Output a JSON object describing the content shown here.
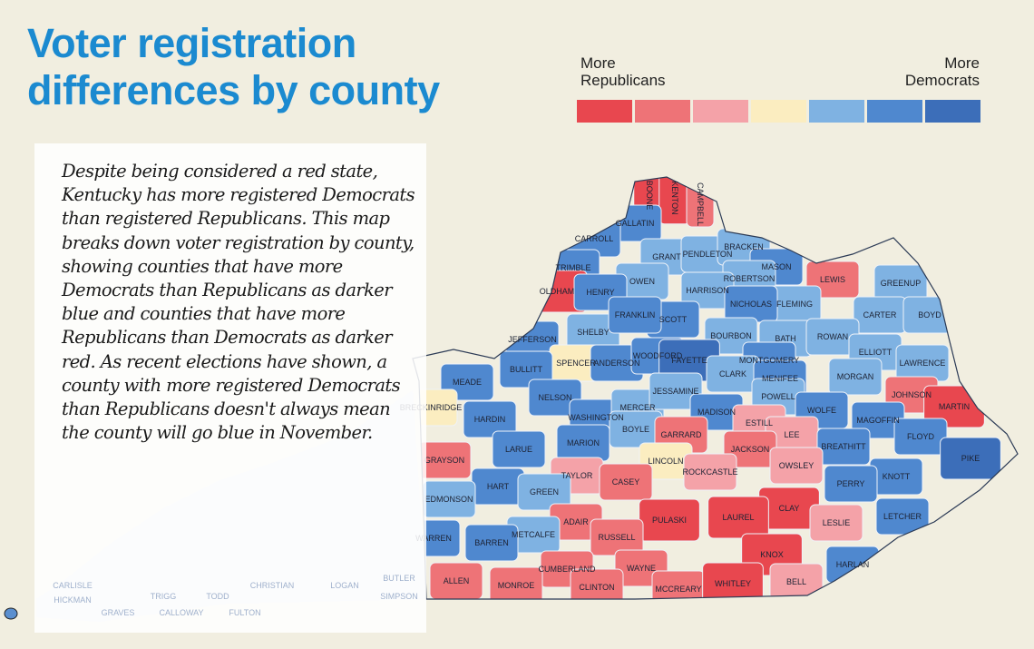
{
  "title_line1": "Voter registration",
  "title_line2": "differences by county",
  "legend": {
    "left_label": "More Republicans",
    "right_label": "More Democrats",
    "colors": [
      "#e8474f",
      "#ee7377",
      "#f4a2a8",
      "#fbedc0",
      "#7fb2e2",
      "#4f88cf",
      "#3c6eb9"
    ]
  },
  "body_text": "Despite being considered a red state, Kentucky has more registered Democrats than registered Republicans. This map breaks down voter registration by county, showing counties that have more Democrats than Republicans as darker blue and counties that have more Republicans than Democrats as darker red. As recent elections have shown, a county with more registered Democrats than Republicans doesn't always mean the county will go blue in November.",
  "counties": [
    {
      "name": "BOONE",
      "level": -3
    },
    {
      "name": "KENTON",
      "level": -3
    },
    {
      "name": "CAMPBELL",
      "level": -2
    },
    {
      "name": "GALLATIN",
      "level": 2
    },
    {
      "name": "CARROLL",
      "level": 2
    },
    {
      "name": "TRIMBLE",
      "level": 2
    },
    {
      "name": "OLDHAM",
      "level": -3
    },
    {
      "name": "GRANT",
      "level": 1
    },
    {
      "name": "PENDLETON",
      "level": 1
    },
    {
      "name": "BRACKEN",
      "level": 1
    },
    {
      "name": "OWEN",
      "level": 1
    },
    {
      "name": "HENRY",
      "level": 2
    },
    {
      "name": "MASON",
      "level": 2
    },
    {
      "name": "ROBERTSON",
      "level": 1
    },
    {
      "name": "LEWIS",
      "level": -2
    },
    {
      "name": "GREENUP",
      "level": 1
    },
    {
      "name": "HARRISON",
      "level": 1
    },
    {
      "name": "FLEMING",
      "level": 1
    },
    {
      "name": "CARTER",
      "level": 1
    },
    {
      "name": "BOYD",
      "level": 1
    },
    {
      "name": "SHELBY",
      "level": 1
    },
    {
      "name": "SCOTT",
      "level": 2
    },
    {
      "name": "FRANKLIN",
      "level": 2
    },
    {
      "name": "NICHOLAS",
      "level": 2
    },
    {
      "name": "BOURBON",
      "level": 1
    },
    {
      "name": "BATH",
      "level": 1
    },
    {
      "name": "ROWAN",
      "level": 1
    },
    {
      "name": "ELLIOTT",
      "level": 1
    },
    {
      "name": "LAWRENCE",
      "level": 1
    },
    {
      "name": "JEFFERSON",
      "level": 2
    },
    {
      "name": "SPENCER",
      "level": 0
    },
    {
      "name": "ANDERSON",
      "level": 2
    },
    {
      "name": "WOODFORD",
      "level": 2
    },
    {
      "name": "FAYETTE",
      "level": 3
    },
    {
      "name": "MONTGOMERY",
      "level": 2
    },
    {
      "name": "CLARK",
      "level": 1
    },
    {
      "name": "MENIFEE",
      "level": 2
    },
    {
      "name": "MORGAN",
      "level": 1
    },
    {
      "name": "JOHNSON",
      "level": -2
    },
    {
      "name": "MARTIN",
      "level": -3
    },
    {
      "name": "BULLITT",
      "level": 2
    },
    {
      "name": "MEADE",
      "level": 2
    },
    {
      "name": "BRECKINRIDGE",
      "level": 0
    },
    {
      "name": "HARDIN",
      "level": 2
    },
    {
      "name": "NELSON",
      "level": 2
    },
    {
      "name": "WASHINGTON",
      "level": 2
    },
    {
      "name": "MERCER",
      "level": 1
    },
    {
      "name": "JESSAMINE",
      "level": 1
    },
    {
      "name": "MADISON",
      "level": 2
    },
    {
      "name": "POWELL",
      "level": 1
    },
    {
      "name": "ESTILL",
      "level": -1
    },
    {
      "name": "WOLFE",
      "level": 2
    },
    {
      "name": "MAGOFFIN",
      "level": 2
    },
    {
      "name": "FLOYD",
      "level": 2
    },
    {
      "name": "PIKE",
      "level": 3
    },
    {
      "name": "BOYLE",
      "level": 1
    },
    {
      "name": "MARION",
      "level": 2
    },
    {
      "name": "GARRARD",
      "level": -2
    },
    {
      "name": "LEE",
      "level": -1
    },
    {
      "name": "BREATHITT",
      "level": 2
    },
    {
      "name": "LARUE",
      "level": 2
    },
    {
      "name": "LINCOLN",
      "level": 0
    },
    {
      "name": "GRAYSON",
      "level": -2
    },
    {
      "name": "JACKSON",
      "level": -2
    },
    {
      "name": "OWSLEY",
      "level": -1
    },
    {
      "name": "KNOTT",
      "level": 2
    },
    {
      "name": "HART",
      "level": 2
    },
    {
      "name": "TAYLOR",
      "level": -1
    },
    {
      "name": "CASEY",
      "level": -2
    },
    {
      "name": "ROCKCASTLE",
      "level": -1
    },
    {
      "name": "PERRY",
      "level": 2
    },
    {
      "name": "EDMONSON",
      "level": 1
    },
    {
      "name": "GREEN",
      "level": 1
    },
    {
      "name": "CLAY",
      "level": -3
    },
    {
      "name": "LESLIE",
      "level": -1
    },
    {
      "name": "LETCHER",
      "level": 2
    },
    {
      "name": "LAUREL",
      "level": -3
    },
    {
      "name": "PULASKI",
      "level": -3
    },
    {
      "name": "ADAIR",
      "level": -2
    },
    {
      "name": "METCALFE",
      "level": 1
    },
    {
      "name": "RUSSELL",
      "level": -2
    },
    {
      "name": "WARREN",
      "level": 2
    },
    {
      "name": "BARREN",
      "level": 2
    },
    {
      "name": "KNOX",
      "level": -3
    },
    {
      "name": "HARLAN",
      "level": 2
    },
    {
      "name": "CUMBERLAND",
      "level": -2
    },
    {
      "name": "WAYNE",
      "level": -2
    },
    {
      "name": "ALLEN",
      "level": -2
    },
    {
      "name": "MONROE",
      "level": -2
    },
    {
      "name": "CLINTON",
      "level": -2
    },
    {
      "name": "MCCREARY",
      "level": -2
    },
    {
      "name": "WHITLEY",
      "level": -3
    },
    {
      "name": "BELL",
      "level": -1
    }
  ],
  "faded_counties": [
    "BUTLER",
    "CHRISTIAN",
    "LOGAN",
    "TODD",
    "TRIGG",
    "SIMPSON",
    "CARLISLE",
    "HICKMAN",
    "GRAVES",
    "CALLOWAY",
    "FULTON"
  ]
}
